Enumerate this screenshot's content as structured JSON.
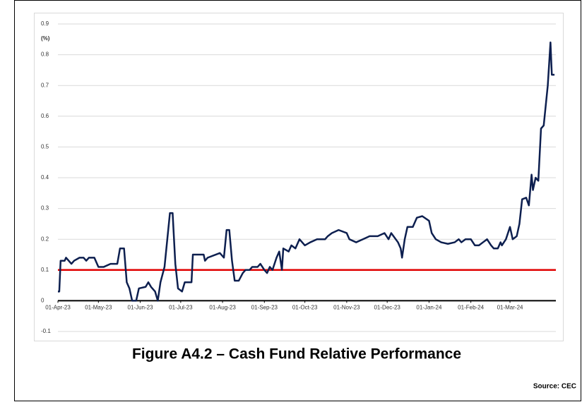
{
  "chart_data": {
    "type": "line",
    "title": "Figure A4.2 – Cash Fund Relative Performance",
    "ylabel": "(%)",
    "source": "Source: CEC",
    "x": [
      "2023-04-01",
      "2023-04-02",
      "2023-04-03",
      "2023-04-06",
      "2023-04-07",
      "2023-04-11",
      "2023-04-13",
      "2023-04-17",
      "2023-04-20",
      "2023-04-22",
      "2023-04-24",
      "2023-04-28",
      "2023-05-01",
      "2023-05-05",
      "2023-05-10",
      "2023-05-15",
      "2023-05-17",
      "2023-05-20",
      "2023-05-22",
      "2023-05-24",
      "2023-05-26",
      "2023-05-29",
      "2023-05-31",
      "2023-06-05",
      "2023-06-07",
      "2023-06-09",
      "2023-06-12",
      "2023-06-14",
      "2023-06-16",
      "2023-06-19",
      "2023-06-23",
      "2023-06-25",
      "2023-06-27",
      "2023-06-29",
      "2023-07-02",
      "2023-07-04",
      "2023-07-09",
      "2023-07-10",
      "2023-07-18",
      "2023-07-19",
      "2023-07-21",
      "2023-07-30",
      "2023-08-02",
      "2023-08-04",
      "2023-08-06",
      "2023-08-08",
      "2023-08-10",
      "2023-08-13",
      "2023-08-16",
      "2023-08-18",
      "2023-08-21",
      "2023-08-23",
      "2023-08-27",
      "2023-08-29",
      "2023-09-01",
      "2023-09-03",
      "2023-09-05",
      "2023-09-07",
      "2023-09-10",
      "2023-09-12",
      "2023-09-14",
      "2023-09-15",
      "2023-09-19",
      "2023-09-21",
      "2023-09-24",
      "2023-09-27",
      "2023-10-01",
      "2023-10-05",
      "2023-10-10",
      "2023-10-16",
      "2023-10-18",
      "2023-10-21",
      "2023-10-26",
      "2023-11-01",
      "2023-11-03",
      "2023-11-08",
      "2023-11-13",
      "2023-11-18",
      "2023-11-24",
      "2023-11-29",
      "2023-12-02",
      "2023-12-04",
      "2023-12-09",
      "2023-12-11",
      "2023-12-12",
      "2023-12-14",
      "2023-12-16",
      "2023-12-20",
      "2023-12-23",
      "2023-12-27",
      "2024-01-01",
      "2024-01-03",
      "2024-01-06",
      "2024-01-10",
      "2024-01-15",
      "2024-01-20",
      "2024-01-23",
      "2024-01-25",
      "2024-01-28",
      "2024-02-01",
      "2024-02-04",
      "2024-02-07",
      "2024-02-10",
      "2024-02-13",
      "2024-02-16",
      "2024-02-18",
      "2024-02-21",
      "2024-02-23",
      "2024-02-24",
      "2024-02-27",
      "2024-03-01",
      "2024-03-03",
      "2024-03-06",
      "2024-03-08",
      "2024-03-10",
      "2024-03-13",
      "2024-03-15",
      "2024-03-17",
      "2024-03-18",
      "2024-03-20",
      "2024-03-22",
      "2024-03-24",
      "2024-03-26",
      "2024-03-29",
      "2024-03-31",
      "2024-04-01",
      "2024-04-03"
    ],
    "series": [
      {
        "color": "#0d1f4f",
        "values": [
          0.03,
          0.03,
          0.13,
          0.13,
          0.14,
          0.12,
          0.13,
          0.14,
          0.14,
          0.13,
          0.14,
          0.14,
          0.11,
          0.11,
          0.12,
          0.12,
          0.17,
          0.17,
          0.06,
          0.04,
          0.0,
          0.0,
          0.04,
          0.045,
          0.06,
          0.045,
          0.03,
          0.0,
          0.06,
          0.11,
          0.285,
          0.285,
          0.12,
          0.04,
          0.03,
          0.06,
          0.06,
          0.15,
          0.15,
          0.13,
          0.14,
          0.155,
          0.14,
          0.23,
          0.23,
          0.13,
          0.065,
          0.065,
          0.09,
          0.1,
          0.1,
          0.11,
          0.11,
          0.12,
          0.1,
          0.09,
          0.11,
          0.1,
          0.14,
          0.16,
          0.1,
          0.17,
          0.16,
          0.18,
          0.17,
          0.2,
          0.18,
          0.19,
          0.2,
          0.2,
          0.21,
          0.22,
          0.23,
          0.22,
          0.2,
          0.19,
          0.2,
          0.21,
          0.21,
          0.22,
          0.2,
          0.22,
          0.19,
          0.17,
          0.14,
          0.2,
          0.24,
          0.24,
          0.27,
          0.275,
          0.26,
          0.22,
          0.2,
          0.19,
          0.185,
          0.19,
          0.2,
          0.19,
          0.2,
          0.2,
          0.18,
          0.18,
          0.19,
          0.2,
          0.18,
          0.17,
          0.17,
          0.19,
          0.18,
          0.2,
          0.24,
          0.2,
          0.21,
          0.25,
          0.33,
          0.335,
          0.31,
          0.41,
          0.36,
          0.4,
          0.39,
          0.56,
          0.57,
          0.7,
          0.84,
          0.735,
          0.735
        ]
      }
    ],
    "reference_line": {
      "value": 0.1,
      "color": "#e00000"
    },
    "xlim": [
      "2023-04-01",
      "2024-04-04"
    ],
    "xticks": [
      {
        "value": "2023-04-01",
        "label": "01-Apr-23"
      },
      {
        "value": "2023-05-01",
        "label": "01-May-23"
      },
      {
        "value": "2023-06-01",
        "label": "01-Jun-23"
      },
      {
        "value": "2023-07-01",
        "label": "01-Jul-23"
      },
      {
        "value": "2023-08-01",
        "label": "01-Aug-23"
      },
      {
        "value": "2023-09-01",
        "label": "01-Sep-23"
      },
      {
        "value": "2023-10-01",
        "label": "01-Oct-23"
      },
      {
        "value": "2023-11-01",
        "label": "01-Nov-23"
      },
      {
        "value": "2023-12-01",
        "label": "01-Dec-23"
      },
      {
        "value": "2024-01-01",
        "label": "01-Jan-24"
      },
      {
        "value": "2024-02-01",
        "label": "01-Feb-24"
      },
      {
        "value": "2024-03-01",
        "label": "01-Mar-24"
      }
    ],
    "ylim": [
      -0.1,
      0.9
    ],
    "yticks": [
      -0.1,
      0,
      0.1,
      0.2,
      0.3,
      0.4,
      0.5,
      0.6,
      0.7,
      0.8,
      0.9
    ],
    "grid": true
  }
}
